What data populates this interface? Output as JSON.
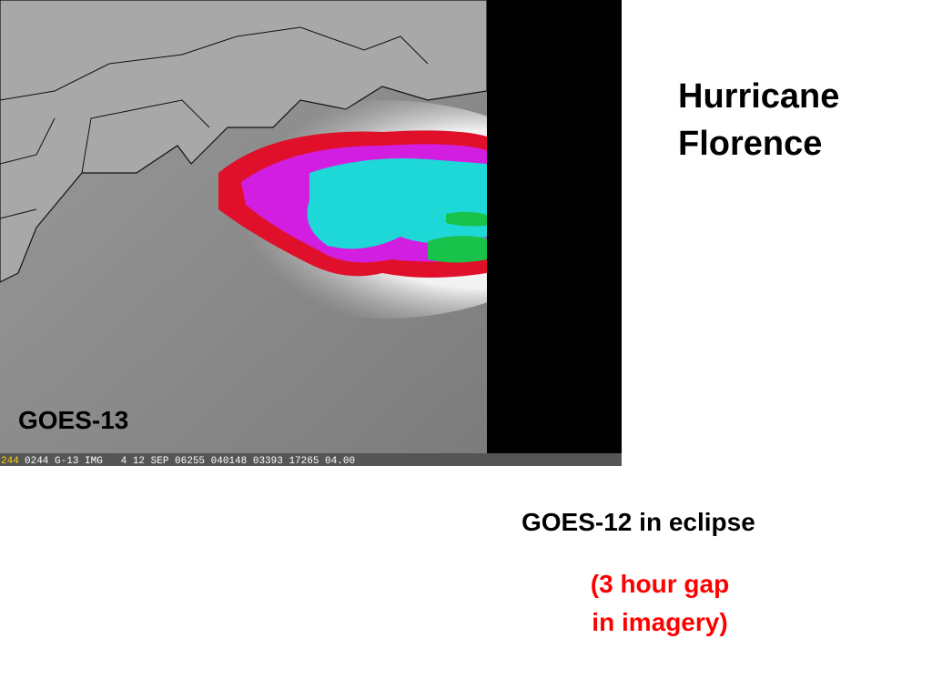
{
  "title": [
    "Hurricane",
    "Florence"
  ],
  "image": {
    "label": "GOES-13",
    "footer": [
      "244",
      "0244 G-13 IMG   4 12 SEP 06255 040148 03393 17265 04.00"
    ]
  },
  "notes": {
    "status": "GOES-12 in eclipse",
    "gap": [
      "(3 hour gap",
      "in imagery)"
    ]
  }
}
